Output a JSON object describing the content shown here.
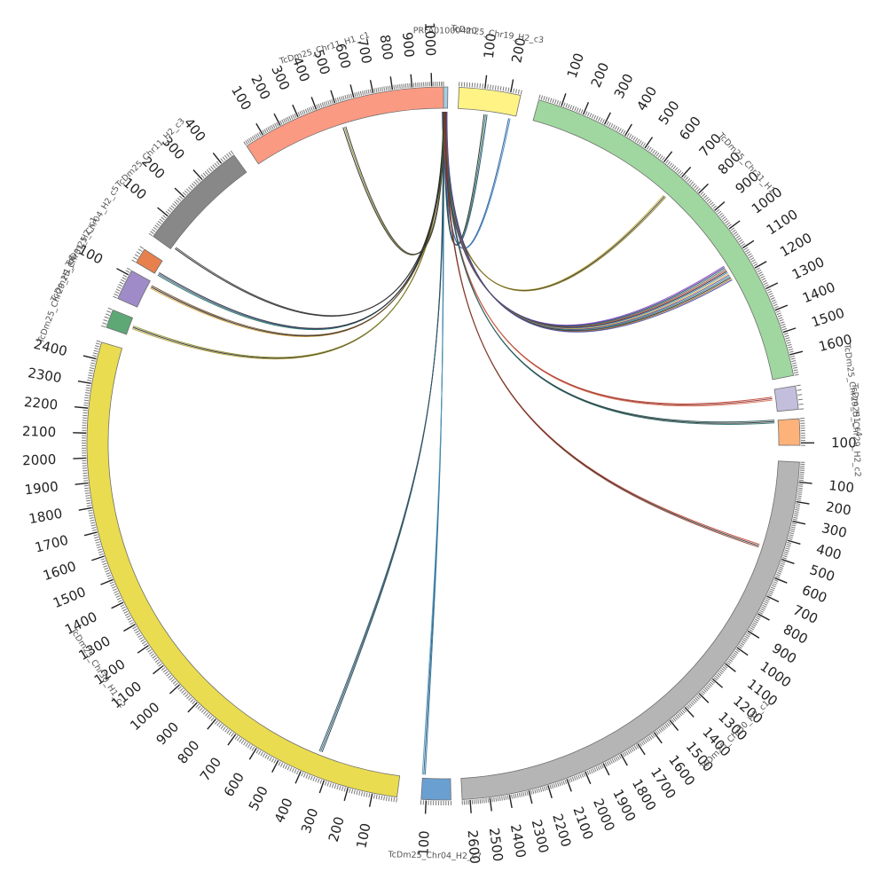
{
  "segments": [
    {
      "name": "PRFA01000420",
      "color": "#a6cee3",
      "length": 6,
      "tick_step": 100,
      "label_ticks": false
    },
    {
      "name": "TcDm25_Chr19_H2_c3",
      "color": "#fff385",
      "length": 240,
      "tick_step": 100,
      "label_ticks": true
    },
    {
      "name": "TcDm25_Chr31_H1",
      "color": "#a0d7a0",
      "length": 1690,
      "tick_step": 100,
      "label_ticks": true
    },
    {
      "name": "TcDm25_Chr29_H1_c4",
      "color": "#c3bedc",
      "length": 50,
      "tick_step": 100,
      "label_ticks": false
    },
    {
      "name": "TcDm25_Chr29_H2_c2",
      "color": "#fdb27a",
      "length": 110,
      "tick_step": 100,
      "label_ticks": true
    },
    {
      "name": "TcDm25_Chr30_H2_c1",
      "color": "#b5b5b5",
      "length": 2640,
      "tick_step": 100,
      "label_ticks": true
    },
    {
      "name": "TcDm25_Chr04_H2_c7",
      "color": "#6a9fd2",
      "length": 120,
      "tick_step": 100,
      "label_ticks": true
    },
    {
      "name": "TcDm25_Chr30_H1_c2",
      "color": "#eadc50",
      "length": 2470,
      "tick_step": 100,
      "label_ticks": true
    },
    {
      "name": "TcDm25_Chr29_H1_c6",
      "color": "#5ea875",
      "length": 60,
      "tick_step": 100,
      "label_ticks": false
    },
    {
      "name": "TcDm25_Chr31_H2_c1",
      "color": "#9f8bc8",
      "length": 120,
      "tick_step": 100,
      "label_ticks": true
    },
    {
      "name": "TcDm25_Chr04_H2_c5",
      "color": "#e7804c",
      "length": 50,
      "tick_step": 100,
      "label_ticks": false
    },
    {
      "name": "TcDm25_Chr11_H2_c3",
      "color": "#888888",
      "length": 460,
      "tick_step": 100,
      "label_ticks": true
    },
    {
      "name": "TcDm25_Chr11_H1_c1",
      "color": "#fb9a82",
      "length": 1060,
      "tick_step": 100,
      "label_ticks": true
    }
  ],
  "links": [
    {
      "from": "PRFA01000420",
      "from_pos": 3,
      "to": "TcDm25_Chr19_H2_c3",
      "to_pos": 115,
      "colors": [
        "#222222",
        "#2f7f4f",
        "#1f3f7f"
      ]
    },
    {
      "from": "PRFA01000420",
      "from_pos": 3,
      "to": "TcDm25_Chr19_H2_c3",
      "to_pos": 215,
      "colors": [
        "#1f4f8f",
        "#3a7fbf"
      ]
    },
    {
      "from": "PRFA01000420",
      "from_pos": 2,
      "to": "TcDm25_Chr31_H1",
      "to_pos": 700,
      "colors": [
        "#c8b030",
        "#222222",
        "#8a7a20"
      ]
    },
    {
      "from": "PRFA01000420",
      "from_pos": 3,
      "to": "TcDm25_Chr31_H1",
      "to_pos": 1160,
      "colors": [
        "#7f3fbf",
        "#2f2f7f",
        "#1f6f4f",
        "#c04040",
        "#222222",
        "#3f7fbf",
        "#d8b830",
        "#5f2f8f",
        "#2f8f8f",
        "#222222",
        "#9f6f2f",
        "#3f3f9f"
      ]
    },
    {
      "from": "PRFA01000420",
      "from_pos": 3,
      "to": "TcDm25_Chr29_H1_c4",
      "to_pos": 20,
      "colors": [
        "#c0402f",
        "#8f2f2f",
        "#d86a4a"
      ]
    },
    {
      "from": "PRFA01000420",
      "from_pos": 4,
      "to": "TcDm25_Chr29_H2_c2",
      "to_pos": 5,
      "colors": [
        "#1f4f4f",
        "#222222",
        "#2f6f6f"
      ]
    },
    {
      "from": "PRFA01000420",
      "from_pos": 4,
      "to": "TcDm25_Chr30_H2_c1",
      "to_pos": 470,
      "colors": [
        "#c0402f",
        "#222222",
        "#8f3f2f"
      ]
    },
    {
      "from": "PRFA01000420",
      "from_pos": 2,
      "to": "TcDm25_Chr04_H2_c7",
      "to_pos": 115,
      "colors": [
        "#1f6f8f",
        "#2f4f7f",
        "#4f9fbf"
      ]
    },
    {
      "from": "PRFA01000420",
      "from_pos": 2,
      "to": "TcDm25_Chr30_H1_c2",
      "to_pos": 355,
      "colors": [
        "#1f3f4f",
        "#2f5f6f",
        "#2f4f5f"
      ]
    },
    {
      "from": "PRFA01000420",
      "from_pos": 2,
      "to": "TcDm25_Chr29_H1_c6",
      "to_pos": 30,
      "colors": [
        "#b0a030",
        "#222222",
        "#8f8f2f"
      ]
    },
    {
      "from": "PRFA01000420",
      "from_pos": 2,
      "to": "TcDm25_Chr31_H2_c1",
      "to_pos": 100,
      "colors": [
        "#d8a030",
        "#222222",
        "#6f4f2f"
      ]
    },
    {
      "from": "PRFA01000420",
      "from_pos": 2,
      "to": "TcDm25_Chr04_H2_c5",
      "to_pos": 5,
      "colors": [
        "#1f6f4f",
        "#2f4f8f",
        "#222222"
      ]
    },
    {
      "from": "PRFA01000420",
      "from_pos": 2,
      "to": "TcDm25_Chr11_H2_c3",
      "to_pos": 15,
      "colors": [
        "#222222",
        "#333333"
      ]
    },
    {
      "from": "PRFA01000420",
      "from_pos": 2,
      "to": "TcDm25_Chr11_H1_c1",
      "to_pos": 510,
      "colors": [
        "#222222",
        "#8f8f2f",
        "#2f2f2f"
      ]
    }
  ]
}
